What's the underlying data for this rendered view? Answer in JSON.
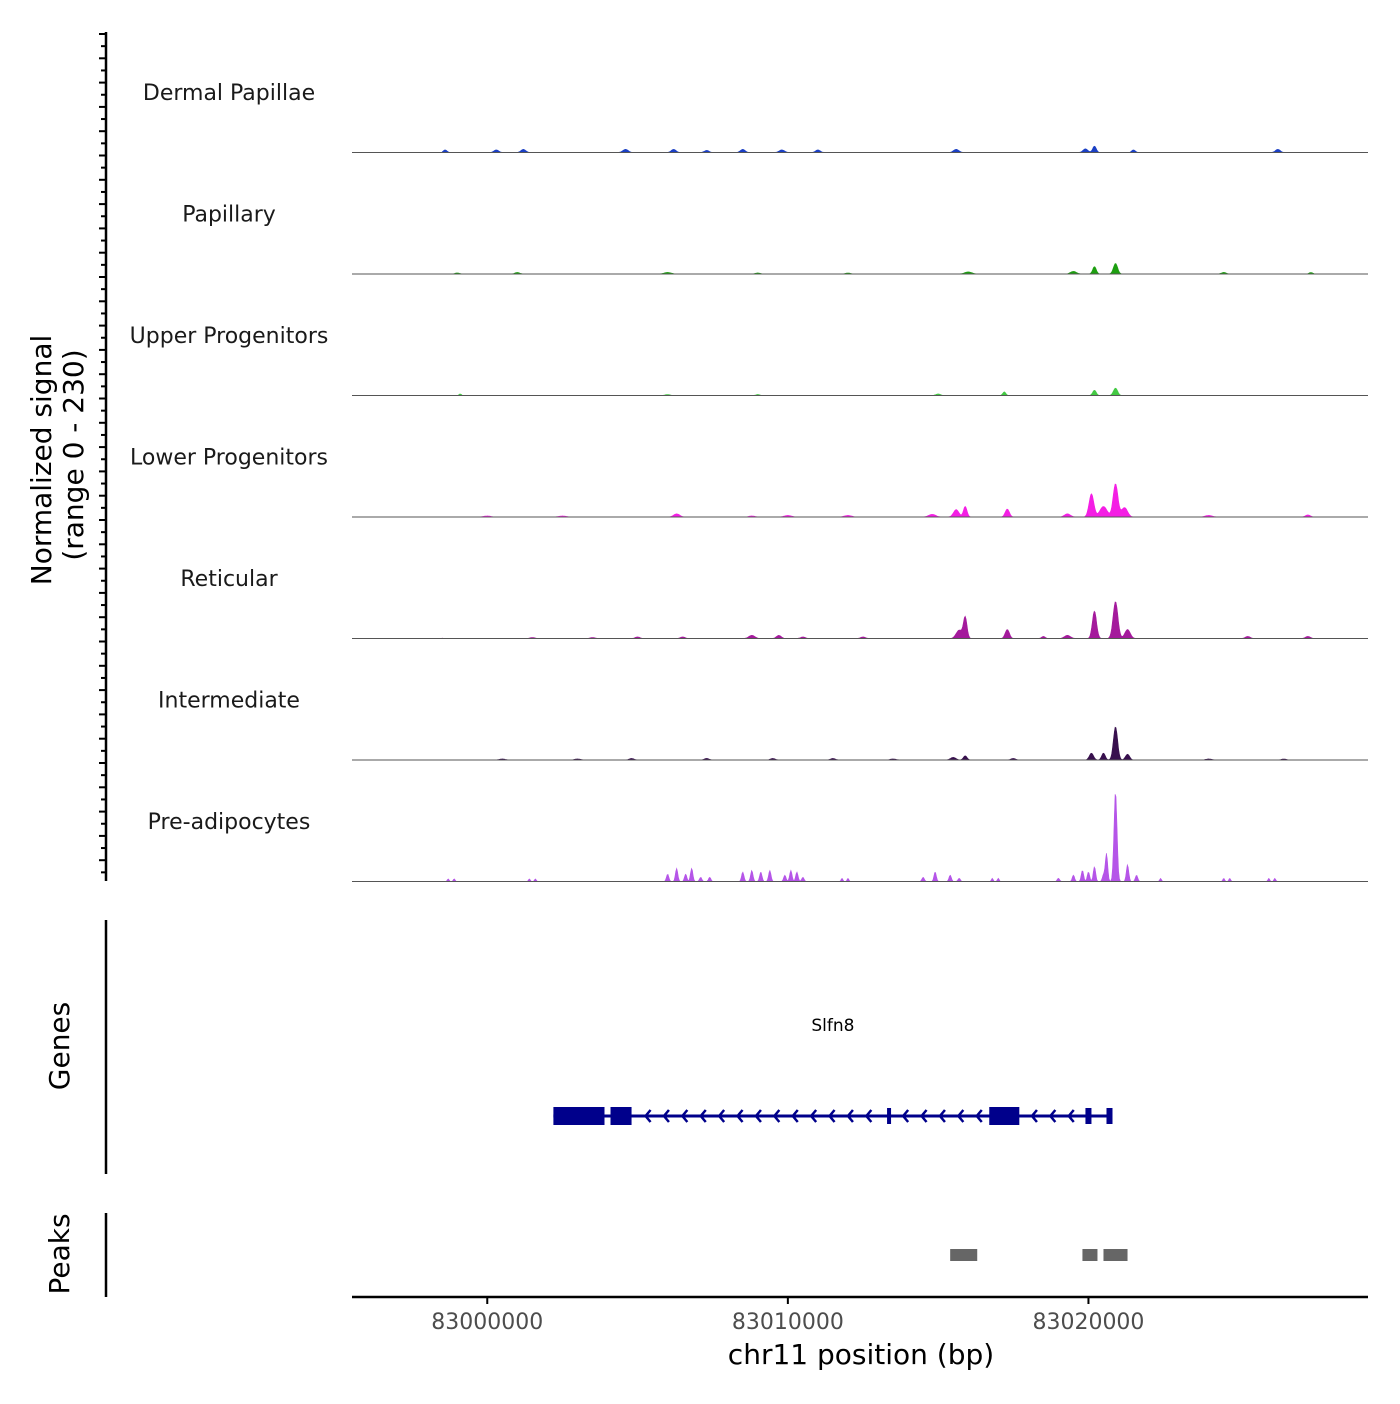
{
  "chart_data": {
    "type": "area",
    "title": "",
    "chromosome": "chr11",
    "xlabel": "chr11 position (bp)",
    "ylabel": "Normalized signal",
    "ylabel_range": "(range 0 - 230)",
    "ylim": [
      0,
      230
    ],
    "xlim": [
      82995500,
      83029300
    ],
    "x_ticks": [
      83000000,
      83010000,
      83020000
    ],
    "x_tick_labels": [
      "83000000",
      "83010000",
      "83020000"
    ],
    "grid": false,
    "series": [
      {
        "name": "Dermal Papillae",
        "color": "#1a3fc4",
        "peaks": [
          [
            82998600,
            5,
            60
          ],
          [
            83000300,
            5,
            80
          ],
          [
            83001200,
            6,
            80
          ],
          [
            83004600,
            6,
            90
          ],
          [
            83006200,
            6,
            80
          ],
          [
            83007300,
            4,
            80
          ],
          [
            83008500,
            6,
            80
          ],
          [
            83009800,
            5,
            90
          ],
          [
            83011000,
            5,
            80
          ],
          [
            83015600,
            6,
            90
          ],
          [
            83019900,
            7,
            80
          ],
          [
            83020200,
            12,
            60
          ],
          [
            83021500,
            5,
            60
          ],
          [
            83026300,
            6,
            80
          ]
        ]
      },
      {
        "name": "Papillary",
        "color": "#1d9e10",
        "peaks": [
          [
            82999000,
            2,
            80
          ],
          [
            83001000,
            3,
            80
          ],
          [
            83006000,
            3,
            120
          ],
          [
            83009000,
            2,
            80
          ],
          [
            83012000,
            2,
            80
          ],
          [
            83016000,
            4,
            120
          ],
          [
            83019500,
            5,
            100
          ],
          [
            83020200,
            14,
            60
          ],
          [
            83020900,
            20,
            70
          ],
          [
            83024500,
            3,
            80
          ],
          [
            83027400,
            3,
            60
          ]
        ]
      },
      {
        "name": "Upper Progenitors",
        "color": "#43c943",
        "peaks": [
          [
            82999100,
            3,
            40
          ],
          [
            83006000,
            2,
            80
          ],
          [
            83009000,
            2,
            60
          ],
          [
            83015000,
            3,
            80
          ],
          [
            83017200,
            7,
            50
          ],
          [
            83020200,
            10,
            60
          ],
          [
            83020900,
            14,
            70
          ]
        ]
      },
      {
        "name": "Lower Progenitors",
        "color": "#f41ee4",
        "peaks": [
          [
            83000000,
            2,
            120
          ],
          [
            83002500,
            2,
            120
          ],
          [
            83006300,
            6,
            100
          ],
          [
            83008800,
            2,
            100
          ],
          [
            83010000,
            3,
            120
          ],
          [
            83012000,
            3,
            120
          ],
          [
            83014800,
            5,
            120
          ],
          [
            83015600,
            14,
            90
          ],
          [
            83015900,
            20,
            60
          ],
          [
            83017300,
            15,
            70
          ],
          [
            83019300,
            6,
            100
          ],
          [
            83020100,
            44,
            80
          ],
          [
            83020500,
            20,
            120
          ],
          [
            83020900,
            63,
            80
          ],
          [
            83021200,
            18,
            100
          ],
          [
            83024000,
            3,
            120
          ],
          [
            83027300,
            4,
            80
          ]
        ]
      },
      {
        "name": "Reticular",
        "color": "#a41a9c",
        "peaks": [
          [
            82998400,
            3,
            60
          ],
          [
            83001500,
            2,
            80
          ],
          [
            83003500,
            2,
            80
          ],
          [
            83005000,
            3,
            80
          ],
          [
            83006500,
            3,
            80
          ],
          [
            83008800,
            6,
            100
          ],
          [
            83009700,
            6,
            80
          ],
          [
            83010500,
            3,
            80
          ],
          [
            83012500,
            3,
            80
          ],
          [
            83015700,
            16,
            100
          ],
          [
            83015900,
            40,
            60
          ],
          [
            83017300,
            17,
            70
          ],
          [
            83018500,
            4,
            60
          ],
          [
            83019300,
            6,
            100
          ],
          [
            83020200,
            52,
            70
          ],
          [
            83020900,
            70,
            80
          ],
          [
            83021300,
            17,
            90
          ],
          [
            83025300,
            4,
            80
          ],
          [
            83027300,
            4,
            80
          ]
        ]
      },
      {
        "name": "Intermediate",
        "color": "#38104e",
        "peaks": [
          [
            82998000,
            2,
            100
          ],
          [
            83000500,
            2,
            100
          ],
          [
            83003000,
            2,
            100
          ],
          [
            83004800,
            3,
            80
          ],
          [
            83007300,
            3,
            80
          ],
          [
            83009500,
            3,
            80
          ],
          [
            83011500,
            3,
            80
          ],
          [
            83013500,
            2,
            100
          ],
          [
            83015500,
            5,
            90
          ],
          [
            83015900,
            8,
            60
          ],
          [
            83017500,
            3,
            80
          ],
          [
            83020100,
            13,
            70
          ],
          [
            83020500,
            13,
            60
          ],
          [
            83020900,
            63,
            70
          ],
          [
            83021300,
            11,
            70
          ],
          [
            83024000,
            2,
            100
          ],
          [
            83026500,
            2,
            80
          ]
        ]
      },
      {
        "name": "Pre-adipocytes",
        "color": "#b555e8",
        "peaks": [
          [
            82998700,
            5,
            30
          ],
          [
            82998900,
            5,
            30
          ],
          [
            83001400,
            5,
            30
          ],
          [
            83001600,
            5,
            30
          ],
          [
            83006000,
            14,
            40
          ],
          [
            83006300,
            25,
            40
          ],
          [
            83006600,
            14,
            40
          ],
          [
            83006800,
            25,
            40
          ],
          [
            83007100,
            8,
            40
          ],
          [
            83007400,
            8,
            40
          ],
          [
            83008500,
            18,
            40
          ],
          [
            83008800,
            21,
            40
          ],
          [
            83009100,
            18,
            40
          ],
          [
            83009400,
            21,
            40
          ],
          [
            83009900,
            12,
            40
          ],
          [
            83010100,
            21,
            40
          ],
          [
            83010300,
            18,
            40
          ],
          [
            83010500,
            8,
            40
          ],
          [
            83011800,
            6,
            30
          ],
          [
            83012000,
            6,
            30
          ],
          [
            83014500,
            8,
            40
          ],
          [
            83014900,
            18,
            40
          ],
          [
            83015400,
            12,
            40
          ],
          [
            83015700,
            6,
            40
          ],
          [
            83016800,
            6,
            30
          ],
          [
            83017000,
            6,
            30
          ],
          [
            83019000,
            6,
            40
          ],
          [
            83019500,
            12,
            40
          ],
          [
            83019800,
            21,
            40
          ],
          [
            83020000,
            18,
            40
          ],
          [
            83020200,
            28,
            40
          ],
          [
            83020500,
            12,
            40
          ],
          [
            83020600,
            53,
            40
          ],
          [
            83020900,
            170,
            50
          ],
          [
            83021300,
            32,
            40
          ],
          [
            83021600,
            12,
            40
          ],
          [
            83022400,
            6,
            30
          ],
          [
            83024500,
            6,
            30
          ],
          [
            83024700,
            6,
            30
          ],
          [
            83026000,
            6,
            30
          ],
          [
            83026200,
            6,
            30
          ]
        ]
      }
    ],
    "genes": [
      {
        "name": "Slfn8",
        "strand": "-",
        "color": "#00008b",
        "start": 83002200,
        "end": 83020800,
        "exons": [
          [
            83002200,
            83003900,
            "thick"
          ],
          [
            83004100,
            83004800,
            "thick"
          ],
          [
            83013300,
            83013400,
            "thin"
          ],
          [
            83016700,
            83017700,
            "thick"
          ],
          [
            83019900,
            83020100,
            "thin"
          ],
          [
            83020600,
            83020800,
            "thin"
          ]
        ]
      }
    ],
    "peak_regions": [
      [
        83015400,
        83016300
      ],
      [
        83019800,
        83020300
      ],
      [
        83020500,
        83021300
      ]
    ],
    "panel_labels": {
      "genes": "Genes",
      "peaks": "Peaks"
    }
  }
}
